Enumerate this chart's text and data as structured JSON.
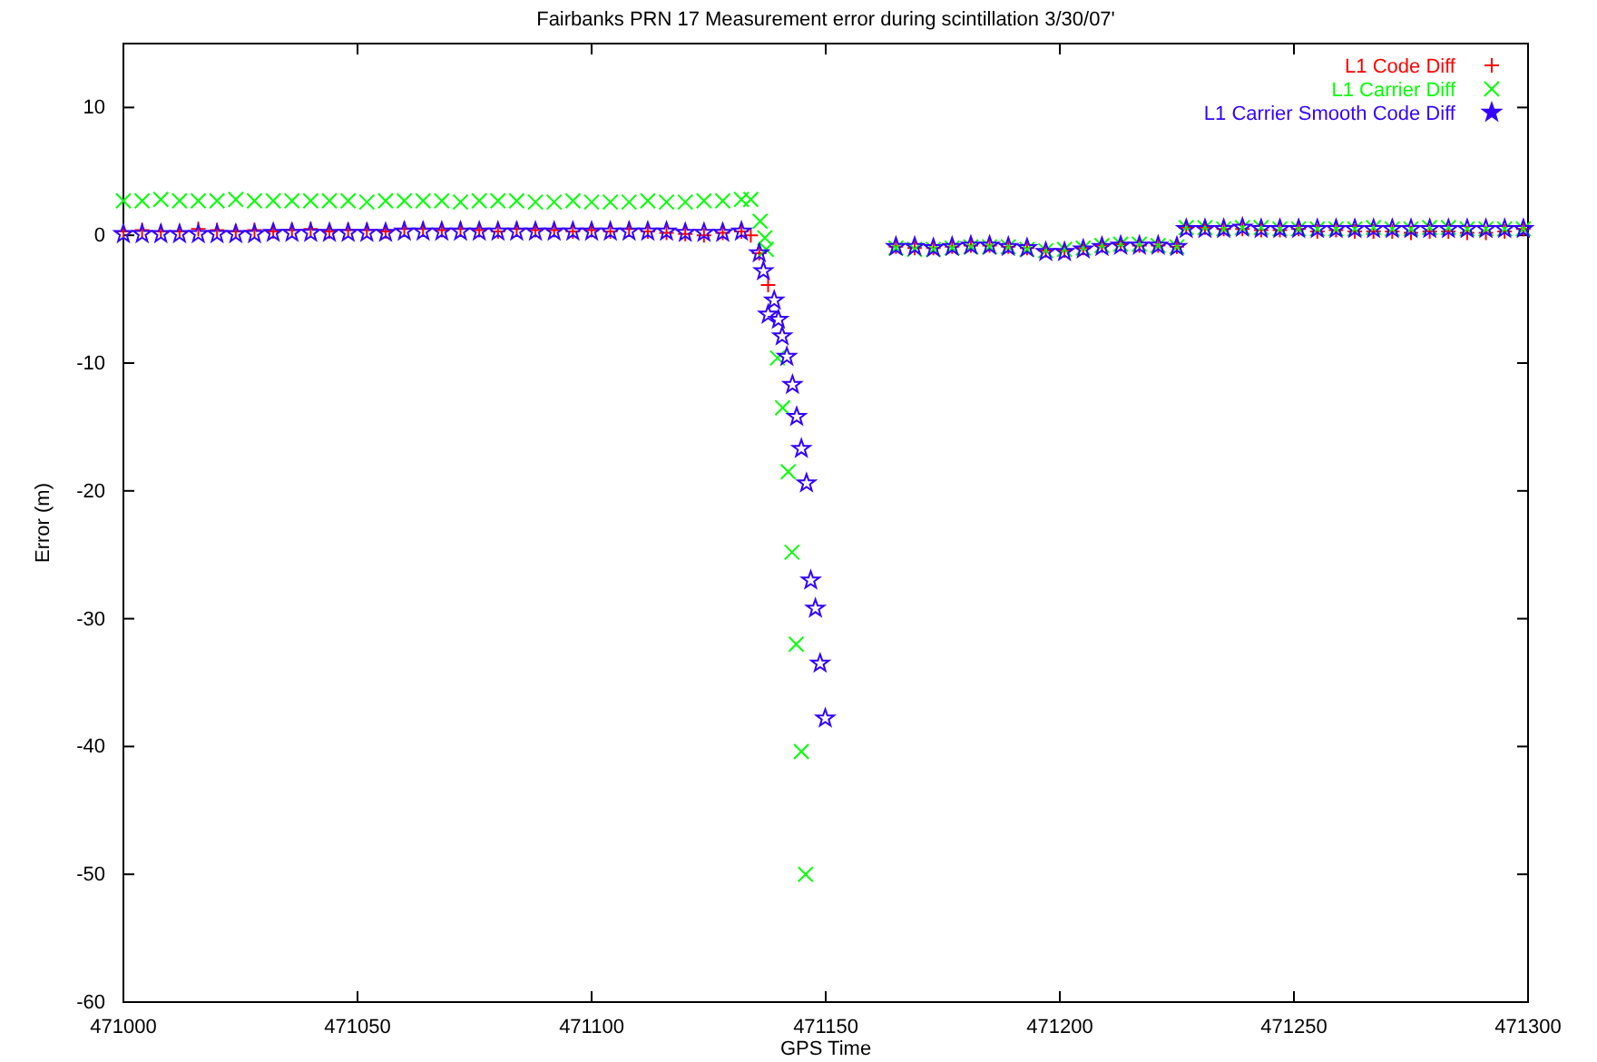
{
  "chart_data": {
    "type": "scatter",
    "title": "Fairbanks PRN 17 Measurement error during scintillation 3/30/07'",
    "xlabel": "GPS Time",
    "ylabel": "Error (m)",
    "xlim": [
      471000,
      471300
    ],
    "xticks": [
      471000,
      471050,
      471100,
      471150,
      471200,
      471250,
      471300
    ],
    "ylim": [
      -60,
      15
    ],
    "yticks": [
      -60,
      -50,
      -40,
      -30,
      -20,
      -10,
      0,
      10
    ],
    "grid": false,
    "legend": "top right",
    "series": [
      {
        "name": "L1 Code Diff",
        "color": "#ff0000",
        "marker": "plus",
        "x": [
          471000,
          471004,
          471008,
          471012,
          471016,
          471020,
          471024,
          471028,
          471032,
          471036,
          471040,
          471044,
          471048,
          471052,
          471056,
          471060,
          471064,
          471068,
          471072,
          471076,
          471080,
          471084,
          471088,
          471092,
          471096,
          471100,
          471104,
          471108,
          471112,
          471116,
          471120,
          471124,
          471128,
          471132,
          471134,
          471135.8,
          471137.7,
          471165,
          471169,
          471173,
          471177,
          471181,
          471185,
          471189,
          471193,
          471197,
          471201,
          471205,
          471209,
          471213,
          471217,
          471221,
          471225,
          471227,
          471231,
          471235,
          471239,
          471243,
          471247,
          471251,
          471255,
          471259,
          471263,
          471267,
          471271,
          471275,
          471279,
          471283,
          471287,
          471291,
          471295,
          471299
        ],
        "values": [
          0.3,
          0.4,
          0.3,
          0.3,
          0.5,
          0.4,
          0.3,
          0.4,
          0.3,
          0.4,
          0.5,
          0.3,
          0.4,
          0.4,
          0.3,
          0.5,
          0.5,
          0.4,
          0.5,
          0.4,
          0.3,
          0.5,
          0.4,
          0.4,
          0.3,
          0.4,
          0.3,
          0.5,
          0.3,
          0.2,
          0.1,
          0.0,
          0.2,
          0.3,
          0.0,
          -1.4,
          -3.9,
          -0.9,
          -1.0,
          -1.0,
          -0.9,
          -0.8,
          -0.8,
          -0.9,
          -1.0,
          -1.2,
          -1.2,
          -1.0,
          -0.8,
          -0.7,
          -0.8,
          -0.8,
          -0.9,
          0.6,
          0.6,
          0.5,
          0.5,
          0.4,
          0.4,
          0.5,
          0.3,
          0.4,
          0.3,
          0.3,
          0.3,
          0.2,
          0.3,
          0.3,
          0.2,
          0.2,
          0.3,
          0.5
        ]
      },
      {
        "name": "L1 Carrier Diff",
        "color": "#00ff00",
        "marker": "cross",
        "x": [
          471000,
          471004,
          471008,
          471012,
          471016,
          471020,
          471024,
          471028,
          471032,
          471036,
          471040,
          471044,
          471048,
          471052,
          471056,
          471060,
          471064,
          471068,
          471072,
          471076,
          471080,
          471084,
          471088,
          471092,
          471096,
          471100,
          471104,
          471108,
          471112,
          471116,
          471120,
          471124,
          471128,
          471132,
          471134,
          471136,
          471137,
          471137.3,
          471139.7,
          471140.8,
          471142,
          471142.8,
          471143.7,
          471144.8,
          471145.7,
          471165,
          471169,
          471173,
          471177,
          471181,
          471185,
          471189,
          471193,
          471197,
          471201,
          471205,
          471209,
          471213,
          471217,
          471221,
          471225,
          471227,
          471231,
          471235,
          471239,
          471243,
          471247,
          471251,
          471255,
          471259,
          471263,
          471267,
          471271,
          471275,
          471279,
          471283,
          471287,
          471291,
          471295,
          471299
        ],
        "values": [
          2.7,
          2.7,
          2.8,
          2.7,
          2.7,
          2.7,
          2.8,
          2.7,
          2.7,
          2.7,
          2.7,
          2.7,
          2.7,
          2.6,
          2.7,
          2.7,
          2.7,
          2.7,
          2.6,
          2.7,
          2.7,
          2.7,
          2.6,
          2.6,
          2.7,
          2.6,
          2.6,
          2.6,
          2.7,
          2.6,
          2.6,
          2.7,
          2.7,
          2.8,
          2.8,
          1.1,
          -0.2,
          -1.1,
          -9.6,
          -13.5,
          -18.5,
          -24.8,
          -32.0,
          -40.4,
          -50.0,
          -1.0,
          -1.1,
          -1.1,
          -1.0,
          -0.9,
          -0.9,
          -0.9,
          -1.1,
          -1.2,
          -1.1,
          -1.0,
          -0.8,
          -0.7,
          -0.7,
          -0.8,
          -0.9,
          0.6,
          0.6,
          0.5,
          0.6,
          0.6,
          0.5,
          0.5,
          0.5,
          0.5,
          0.5,
          0.6,
          0.5,
          0.5,
          0.6,
          0.6,
          0.5,
          0.5,
          0.5,
          0.5
        ]
      },
      {
        "name": "L1 Carrier Smooth Code Diff",
        "color": "#3300ff",
        "marker": "star",
        "x": [
          471000,
          471004,
          471008,
          471012,
          471016,
          471020,
          471024,
          471028,
          471032,
          471036,
          471040,
          471044,
          471048,
          471052,
          471056,
          471060,
          471064,
          471068,
          471072,
          471076,
          471080,
          471084,
          471088,
          471092,
          471096,
          471100,
          471104,
          471108,
          471112,
          471116,
          471120,
          471124,
          471128,
          471132,
          471135.8,
          471136.7,
          471137.7,
          471139,
          471139.9,
          471140.7,
          471141.7,
          471142.9,
          471143.8,
          471144.8,
          471145.9,
          471146.8,
          471147.8,
          471148.8,
          471149.9,
          471165,
          471169,
          471173,
          471177,
          471181,
          471185,
          471189,
          471193,
          471197,
          471201,
          471205,
          471209,
          471213,
          471217,
          471221,
          471225,
          471227,
          471231,
          471235,
          471239,
          471243,
          471247,
          471251,
          471255,
          471259,
          471263,
          471267,
          471271,
          471275,
          471279,
          471283,
          471287,
          471291,
          471295,
          471299
        ],
        "values": [
          0.1,
          0.1,
          0.1,
          0.1,
          0.1,
          0.1,
          0.1,
          0.1,
          0.2,
          0.2,
          0.2,
          0.2,
          0.2,
          0.2,
          0.2,
          0.3,
          0.3,
          0.3,
          0.3,
          0.3,
          0.3,
          0.3,
          0.3,
          0.3,
          0.3,
          0.3,
          0.3,
          0.3,
          0.3,
          0.3,
          0.2,
          0.2,
          0.2,
          0.3,
          -1.4,
          -2.8,
          -6.2,
          -5.1,
          -6.6,
          -7.9,
          -9.5,
          -11.7,
          -14.2,
          -16.7,
          -19.4,
          -27.0,
          -29.2,
          -33.5,
          -37.8,
          -0.9,
          -0.9,
          -1.0,
          -0.9,
          -0.8,
          -0.8,
          -0.9,
          -1.0,
          -1.3,
          -1.3,
          -1.1,
          -0.9,
          -0.8,
          -0.8,
          -0.8,
          -0.9,
          0.5,
          0.5,
          0.5,
          0.6,
          0.5,
          0.5,
          0.5,
          0.5,
          0.5,
          0.5,
          0.5,
          0.5,
          0.5,
          0.5,
          0.5,
          0.5,
          0.5,
          0.5,
          0.5
        ]
      }
    ]
  }
}
